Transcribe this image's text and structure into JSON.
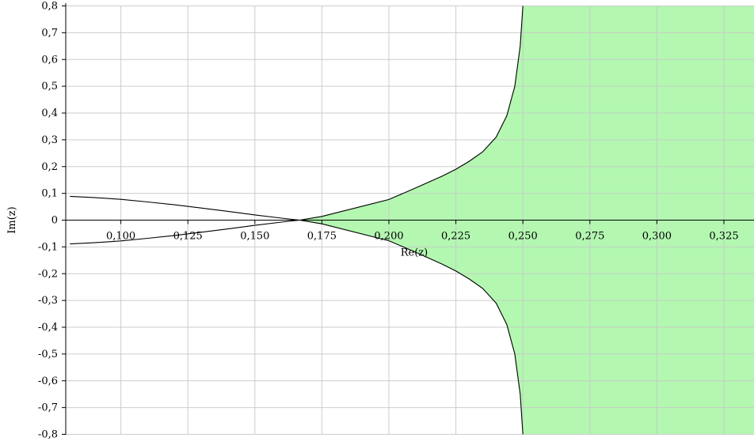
{
  "chart_data": {
    "type": "area",
    "title": "",
    "xlabel": "Re(z)",
    "ylabel": "Im(z)",
    "xlim": [
      0.081,
      0.3377
    ],
    "ylim": [
      -0.8,
      0.8
    ],
    "grid": true,
    "fill_color": "#b3f7b1",
    "line_color": "#000000",
    "x_ticks": [
      0.1,
      0.125,
      0.15,
      0.175,
      0.2,
      0.225,
      0.25,
      0.275,
      0.3,
      0.325
    ],
    "x_tick_labels": [
      "0,100",
      "0,125",
      "0,150",
      "0,175",
      "0,200",
      "0,225",
      "0,250",
      "0,275",
      "0,300",
      "0,325"
    ],
    "y_ticks": [
      0.8,
      0.7,
      0.6,
      0.5,
      0.4,
      0.3,
      0.2,
      0.1,
      0,
      -0.1,
      -0.2,
      -0.3,
      -0.4,
      -0.5,
      -0.6,
      -0.7,
      -0.8
    ],
    "y_tick_labels": [
      "0,8",
      "0,7",
      "0,6",
      "0,5",
      "0,4",
      "0,3",
      "0,2",
      "0,1",
      "0",
      "-0,1",
      "-0,2",
      "-0,3",
      "-0,4",
      "-0,5",
      "-0,6",
      "-0,7",
      "-0,8"
    ],
    "series": [
      {
        "x": [
          0.081,
          0.09,
          0.1,
          0.11,
          0.12,
          0.13,
          0.14,
          0.15,
          0.16,
          0.1667
        ],
        "y": [
          -0.089,
          -0.0845,
          -0.0777,
          -0.068,
          -0.0573,
          -0.0452,
          -0.0327,
          -0.0194,
          -0.0073,
          0
        ]
      },
      {
        "x": [
          0.081,
          0.09,
          0.1,
          0.11,
          0.12,
          0.13,
          0.14,
          0.15,
          0.16,
          0.1667
        ],
        "y": [
          0.089,
          0.0845,
          0.0777,
          0.068,
          0.0573,
          0.0452,
          0.0327,
          0.0194,
          0.0073,
          0
        ]
      },
      {
        "x": [
          0.1667,
          0.175,
          0.2,
          0.21,
          0.22,
          0.225,
          0.23,
          0.235,
          0.24,
          0.244,
          0.247,
          0.249,
          0.25
        ],
        "y": [
          0,
          0.014,
          0.077,
          0.12,
          0.165,
          0.19,
          0.22,
          0.255,
          0.31,
          0.39,
          0.5,
          0.65,
          0.8
        ]
      },
      {
        "x": [
          0.1667,
          0.175,
          0.2,
          0.21,
          0.22,
          0.225,
          0.23,
          0.235,
          0.24,
          0.244,
          0.247,
          0.249,
          0.25
        ],
        "y": [
          0,
          -0.014,
          -0.077,
          -0.12,
          -0.165,
          -0.19,
          -0.22,
          -0.255,
          -0.31,
          -0.39,
          -0.5,
          -0.65,
          -0.8
        ]
      }
    ],
    "filled_region": {
      "boundary_x": [
        0.1667,
        0.175,
        0.2,
        0.21,
        0.22,
        0.225,
        0.23,
        0.235,
        0.24,
        0.244,
        0.247,
        0.249,
        0.25
      ],
      "boundary_y": [
        0,
        0.014,
        0.077,
        0.12,
        0.165,
        0.19,
        0.22,
        0.255,
        0.31,
        0.39,
        0.5,
        0.65,
        0.8
      ],
      "extends_to": "right"
    }
  }
}
